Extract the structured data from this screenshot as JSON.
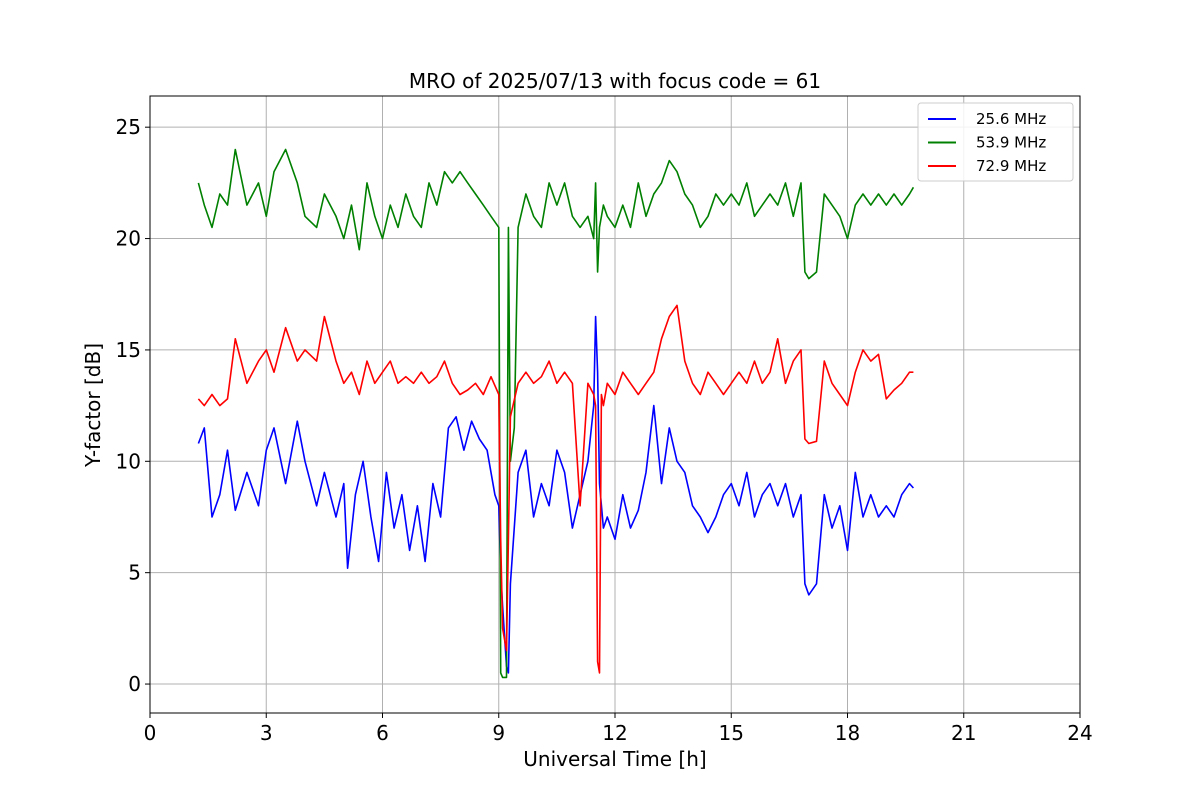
{
  "chart_data": {
    "type": "line",
    "title": "MRO of 2025/07/13 with focus code = 61",
    "xlabel": "Universal Time [h]",
    "ylabel": "Y-factor [dB]",
    "xlim": [
      0,
      24
    ],
    "ylim": [
      -1.3,
      26.4
    ],
    "xticks": [
      0,
      3,
      6,
      9,
      12,
      15,
      18,
      21,
      24
    ],
    "yticks": [
      0,
      5,
      10,
      15,
      20,
      25
    ],
    "grid": true,
    "legend": "top-right",
    "series": [
      {
        "name": "25.6 MHz",
        "color": "#0000ff",
        "x": [
          1.25,
          1.4,
          1.6,
          1.8,
          2.0,
          2.2,
          2.5,
          2.8,
          3.0,
          3.2,
          3.5,
          3.8,
          4.0,
          4.3,
          4.5,
          4.8,
          5.0,
          5.1,
          5.3,
          5.5,
          5.7,
          5.9,
          6.1,
          6.3,
          6.5,
          6.7,
          6.9,
          7.1,
          7.3,
          7.5,
          7.7,
          7.9,
          8.1,
          8.3,
          8.5,
          8.7,
          8.9,
          9.0,
          9.05,
          9.1,
          9.2,
          9.25,
          9.3,
          9.5,
          9.7,
          9.9,
          10.1,
          10.3,
          10.5,
          10.7,
          10.9,
          11.1,
          11.3,
          11.45,
          11.5,
          11.55,
          11.6,
          11.7,
          11.8,
          12.0,
          12.2,
          12.4,
          12.6,
          12.8,
          13.0,
          13.2,
          13.4,
          13.6,
          13.8,
          14.0,
          14.2,
          14.4,
          14.6,
          14.8,
          15.0,
          15.2,
          15.4,
          15.6,
          15.8,
          16.0,
          16.2,
          16.4,
          16.6,
          16.8,
          16.9,
          17.0,
          17.2,
          17.4,
          17.6,
          17.8,
          18.0,
          18.2,
          18.4,
          18.6,
          18.8,
          19.0,
          19.2,
          19.4,
          19.6,
          19.7
        ],
        "y": [
          10.8,
          11.5,
          7.5,
          8.5,
          10.5,
          7.8,
          9.5,
          8.0,
          10.5,
          11.5,
          9.0,
          11.8,
          10.0,
          8.0,
          9.5,
          7.5,
          9.0,
          5.2,
          8.5,
          10.0,
          7.5,
          5.5,
          9.5,
          7.0,
          8.5,
          6.0,
          8.0,
          5.5,
          9.0,
          7.5,
          11.5,
          12.0,
          10.5,
          11.8,
          11.0,
          10.5,
          8.5,
          8.0,
          5.0,
          3.5,
          0.8,
          0.5,
          4.5,
          9.5,
          10.5,
          7.5,
          9.0,
          8.0,
          10.5,
          9.5,
          7.0,
          8.5,
          10.0,
          12.5,
          16.5,
          14.0,
          9.0,
          7.0,
          7.5,
          6.5,
          8.5,
          7.0,
          7.8,
          9.5,
          12.5,
          9.0,
          11.5,
          10.0,
          9.5,
          8.0,
          7.5,
          6.8,
          7.5,
          8.5,
          9.0,
          8.0,
          9.5,
          7.5,
          8.5,
          9.0,
          8.0,
          9.0,
          7.5,
          8.5,
          4.5,
          4.0,
          4.5,
          8.5,
          7.0,
          8.0,
          6.0,
          9.5,
          7.5,
          8.5,
          7.5,
          8.0,
          7.5,
          8.5,
          9.0,
          8.8
        ]
      },
      {
        "name": "53.9 MHz",
        "color": "#008000",
        "x": [
          1.25,
          1.4,
          1.6,
          1.8,
          2.0,
          2.2,
          2.5,
          2.8,
          3.0,
          3.2,
          3.5,
          3.8,
          4.0,
          4.3,
          4.5,
          4.8,
          5.0,
          5.2,
          5.4,
          5.6,
          5.8,
          6.0,
          6.2,
          6.4,
          6.6,
          6.8,
          7.0,
          7.2,
          7.4,
          7.6,
          7.8,
          8.0,
          8.2,
          8.4,
          8.6,
          8.8,
          9.0,
          9.05,
          9.1,
          9.2,
          9.25,
          9.3,
          9.4,
          9.5,
          9.7,
          9.9,
          10.1,
          10.3,
          10.5,
          10.7,
          10.9,
          11.1,
          11.3,
          11.45,
          11.5,
          11.55,
          11.6,
          11.7,
          11.8,
          12.0,
          12.2,
          12.4,
          12.6,
          12.8,
          13.0,
          13.2,
          13.4,
          13.6,
          13.8,
          14.0,
          14.2,
          14.4,
          14.6,
          14.8,
          15.0,
          15.2,
          15.4,
          15.6,
          15.8,
          16.0,
          16.2,
          16.4,
          16.6,
          16.8,
          16.9,
          17.0,
          17.2,
          17.4,
          17.6,
          17.8,
          18.0,
          18.2,
          18.4,
          18.6,
          18.8,
          19.0,
          19.2,
          19.4,
          19.6,
          19.7
        ],
        "y": [
          22.5,
          21.5,
          20.5,
          22.0,
          21.5,
          24.0,
          21.5,
          22.5,
          21.0,
          23.0,
          24.0,
          22.5,
          21.0,
          20.5,
          22.0,
          21.0,
          20.0,
          21.5,
          19.5,
          22.5,
          21.0,
          20.0,
          21.5,
          20.5,
          22.0,
          21.0,
          20.5,
          22.5,
          21.5,
          23.0,
          22.5,
          23.0,
          22.5,
          22.0,
          21.5,
          21.0,
          20.5,
          0.5,
          0.3,
          0.3,
          20.5,
          10.0,
          11.5,
          20.5,
          22.0,
          21.0,
          20.5,
          22.5,
          21.5,
          22.5,
          21.0,
          20.5,
          21.0,
          20.0,
          22.5,
          18.5,
          20.5,
          21.5,
          21.0,
          20.5,
          21.5,
          20.5,
          22.5,
          21.0,
          22.0,
          22.5,
          23.5,
          23.0,
          22.0,
          21.5,
          20.5,
          21.0,
          22.0,
          21.5,
          22.0,
          21.5,
          22.5,
          21.0,
          21.5,
          22.0,
          21.5,
          22.5,
          21.0,
          22.5,
          18.5,
          18.2,
          18.5,
          22.0,
          21.5,
          21.0,
          20.0,
          21.5,
          22.0,
          21.5,
          22.0,
          21.5,
          22.0,
          21.5,
          22.0,
          22.3
        ]
      },
      {
        "name": "72.9 MHz",
        "color": "#ff0000",
        "x": [
          1.25,
          1.4,
          1.6,
          1.8,
          2.0,
          2.2,
          2.5,
          2.8,
          3.0,
          3.2,
          3.5,
          3.8,
          4.0,
          4.3,
          4.5,
          4.8,
          5.0,
          5.2,
          5.4,
          5.6,
          5.8,
          6.0,
          6.2,
          6.4,
          6.6,
          6.8,
          7.0,
          7.2,
          7.4,
          7.6,
          7.8,
          8.0,
          8.2,
          8.4,
          8.6,
          8.8,
          9.0,
          9.05,
          9.1,
          9.2,
          9.25,
          9.3,
          9.5,
          9.7,
          9.9,
          10.1,
          10.3,
          10.5,
          10.7,
          10.9,
          11.1,
          11.3,
          11.45,
          11.5,
          11.55,
          11.6,
          11.65,
          11.7,
          11.8,
          12.0,
          12.2,
          12.4,
          12.6,
          12.8,
          13.0,
          13.2,
          13.4,
          13.6,
          13.8,
          14.0,
          14.2,
          14.4,
          14.6,
          14.8,
          15.0,
          15.2,
          15.4,
          15.6,
          15.8,
          16.0,
          16.2,
          16.4,
          16.6,
          16.8,
          16.9,
          17.0,
          17.2,
          17.4,
          17.6,
          17.8,
          18.0,
          18.2,
          18.4,
          18.6,
          18.8,
          19.0,
          19.2,
          19.4,
          19.6,
          19.7
        ],
        "y": [
          12.8,
          12.5,
          13.0,
          12.5,
          12.8,
          15.5,
          13.5,
          14.5,
          15.0,
          14.0,
          16.0,
          14.5,
          15.0,
          14.5,
          16.5,
          14.5,
          13.5,
          14.0,
          13.0,
          14.5,
          13.5,
          14.0,
          14.5,
          13.5,
          13.8,
          13.5,
          14.0,
          13.5,
          13.8,
          14.5,
          13.5,
          13.0,
          13.2,
          13.5,
          13.0,
          13.8,
          13.0,
          6.5,
          2.5,
          1.5,
          6.5,
          12.0,
          13.5,
          14.0,
          13.5,
          13.8,
          14.5,
          13.5,
          14.0,
          13.5,
          8.0,
          13.5,
          13.0,
          12.5,
          1.0,
          0.5,
          13.0,
          12.5,
          13.5,
          13.0,
          14.0,
          13.5,
          13.0,
          13.5,
          14.0,
          15.5,
          16.5,
          17.0,
          14.5,
          13.5,
          13.0,
          14.0,
          13.5,
          13.0,
          13.5,
          14.0,
          13.5,
          14.5,
          13.5,
          14.0,
          15.5,
          13.5,
          14.5,
          15.0,
          11.0,
          10.8,
          10.9,
          14.5,
          13.5,
          13.0,
          12.5,
          14.0,
          15.0,
          14.5,
          14.8,
          12.8,
          13.2,
          13.5,
          14.0,
          14.0
        ]
      }
    ]
  }
}
